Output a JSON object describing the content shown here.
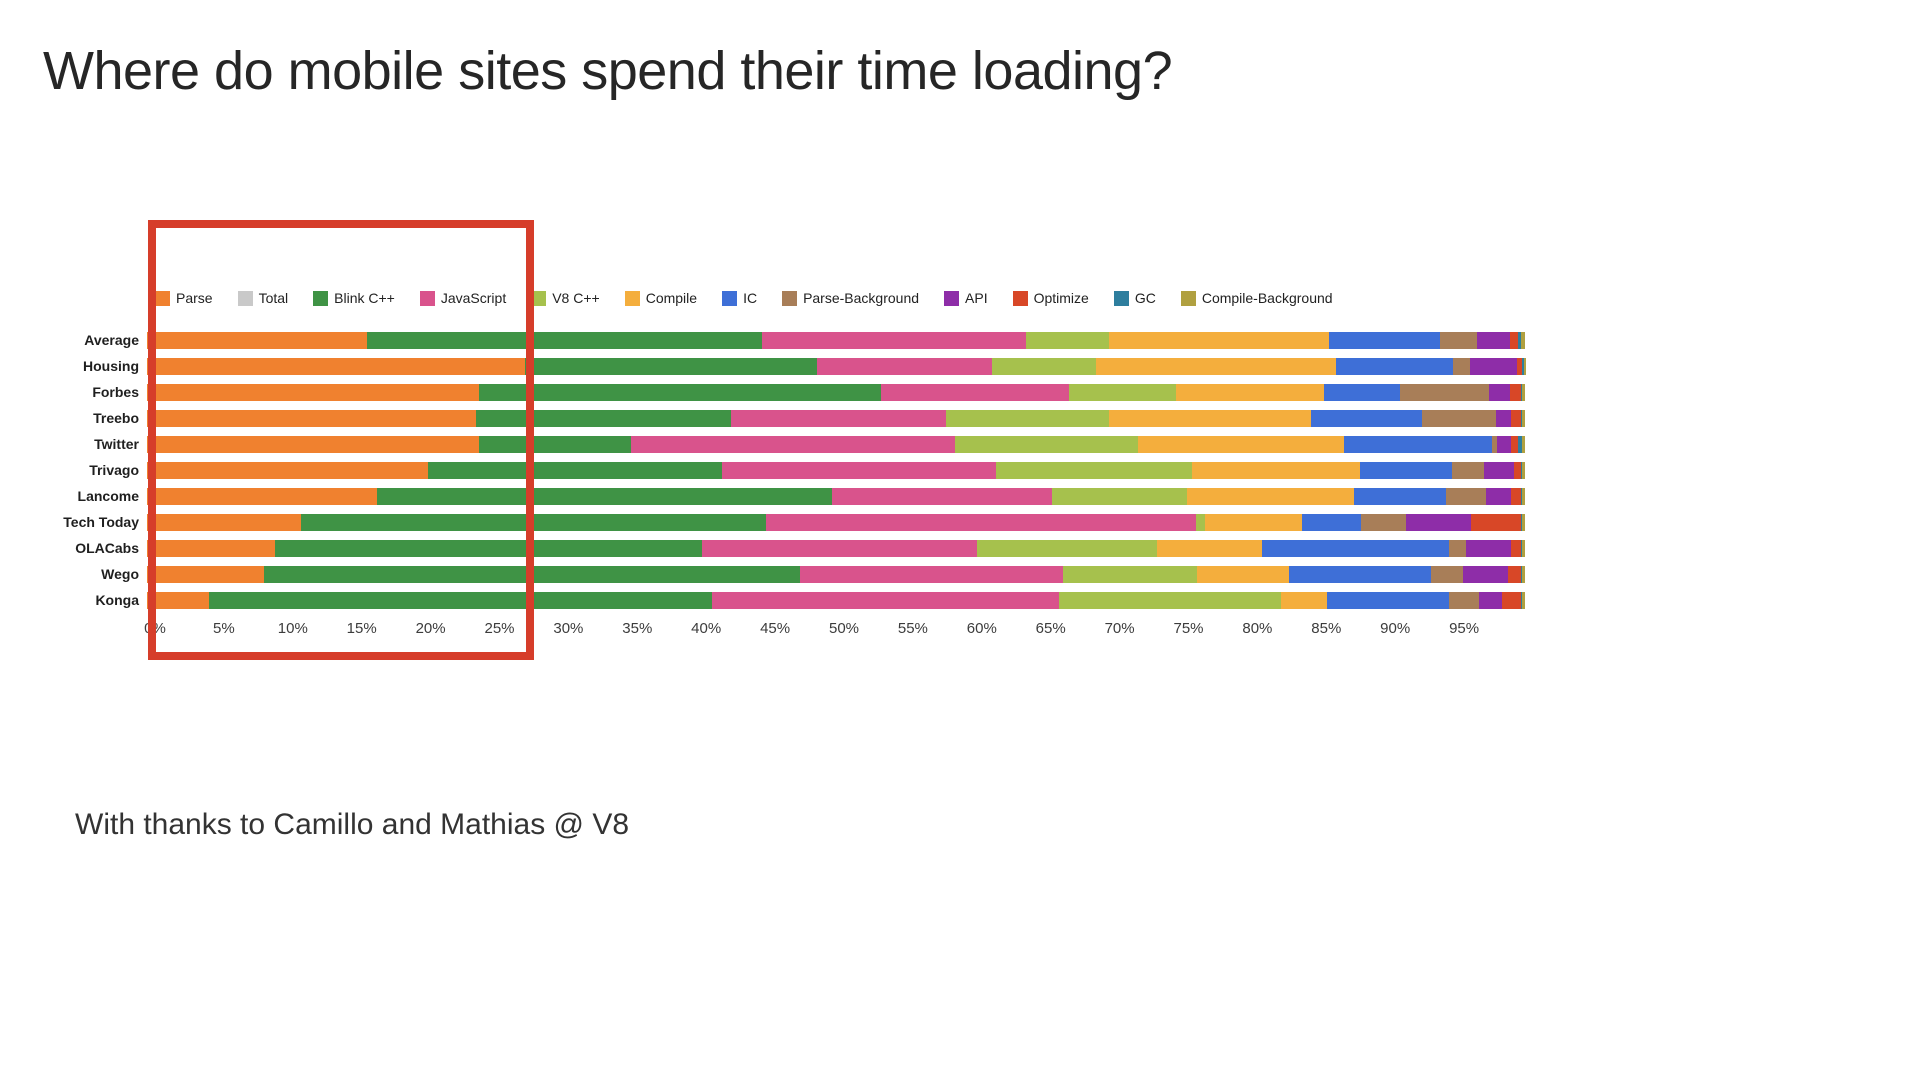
{
  "slide": {
    "title": "Where do mobile sites spend their time loading?",
    "credit": "With thanks to Camillo and Mathias @ V8"
  },
  "chart_data": {
    "type": "bar",
    "orientation": "horizontal",
    "stacked": true,
    "title": "Where do mobile sites spend their time loading?",
    "xlabel": "",
    "ylabel": "",
    "xlim": [
      0,
      100
    ],
    "legend_position": "top",
    "grid": false,
    "categories": [
      "Average",
      "Housing",
      "Forbes",
      "Treebo",
      "Twitter",
      "Trivago",
      "Lancome",
      "Tech Today",
      "OLACabs",
      "Wego",
      "Konga"
    ],
    "x_ticks": [
      "0%",
      "5%",
      "10%",
      "15%",
      "20%",
      "25%",
      "30%",
      "35%",
      "40%",
      "45%",
      "50%",
      "55%",
      "60%",
      "65%",
      "70%",
      "75%",
      "80%",
      "85%",
      "90%",
      "95%"
    ],
    "legend": [
      {
        "label": "Parse",
        "color": "#F0812F"
      },
      {
        "label": "Total",
        "color": "#C9C9C9"
      },
      {
        "label": "Blink C++",
        "color": "#3F9345"
      },
      {
        "label": "JavaScript",
        "color": "#D9538C"
      },
      {
        "label": "V8 C++",
        "color": "#A6C14D"
      },
      {
        "label": "Compile",
        "color": "#F4AE3D"
      },
      {
        "label": "IC",
        "color": "#3E6FD7"
      },
      {
        "label": "Parse-Background",
        "color": "#A87E58"
      },
      {
        "label": "API",
        "color": "#8E2DA8"
      },
      {
        "label": "Optimize",
        "color": "#D84727"
      },
      {
        "label": "GC",
        "color": "#2E7E9E"
      },
      {
        "label": "Compile-Background",
        "color": "#B0A040"
      }
    ],
    "series": [
      {
        "name": "Parse",
        "color": "#F0812F",
        "values": [
          16.0,
          27.4,
          24.1,
          23.9,
          24.1,
          20.4,
          16.7,
          11.2,
          9.3,
          8.5,
          4.5
        ]
      },
      {
        "name": "Blink C++",
        "color": "#3F9345",
        "values": [
          28.6,
          21.2,
          29.2,
          18.5,
          11.0,
          21.3,
          33.0,
          33.7,
          31.0,
          38.9,
          36.5
        ]
      },
      {
        "name": "JavaScript",
        "color": "#D9538C",
        "values": [
          19.2,
          12.7,
          13.6,
          15.6,
          23.5,
          19.9,
          16.0,
          31.2,
          19.9,
          19.1,
          25.2
        ]
      },
      {
        "name": "V8 C++",
        "color": "#A6C14D",
        "values": [
          6.0,
          7.6,
          7.8,
          11.8,
          13.3,
          14.2,
          9.8,
          0.7,
          13.1,
          9.7,
          16.1
        ]
      },
      {
        "name": "Compile",
        "color": "#F4AE3D",
        "values": [
          16.0,
          17.4,
          10.7,
          14.7,
          15.0,
          12.2,
          12.1,
          7.0,
          7.6,
          6.7,
          3.3
        ]
      },
      {
        "name": "IC",
        "color": "#3E6FD7",
        "values": [
          8.0,
          8.5,
          5.5,
          8.0,
          10.7,
          6.7,
          6.7,
          4.3,
          13.6,
          10.3,
          8.9
        ]
      },
      {
        "name": "Parse-Background",
        "color": "#A87E58",
        "values": [
          2.7,
          1.2,
          6.5,
          5.4,
          0.4,
          2.3,
          2.9,
          3.3,
          1.2,
          2.3,
          2.2
        ]
      },
      {
        "name": "API",
        "color": "#8E2DA8",
        "values": [
          2.4,
          3.4,
          1.5,
          1.1,
          1.0,
          2.2,
          1.8,
          4.7,
          3.3,
          3.3,
          1.6
        ]
      },
      {
        "name": "Optimize",
        "color": "#D84727",
        "values": [
          0.6,
          0.4,
          0.8,
          0.7,
          0.5,
          0.5,
          0.7,
          3.6,
          0.7,
          0.9,
          1.4
        ]
      },
      {
        "name": "GC",
        "color": "#2E7E9E",
        "values": [
          0.2,
          0.1,
          0.1,
          0.1,
          0.3,
          0.1,
          0.1,
          0.1,
          0.1,
          0.1,
          0.1
        ]
      },
      {
        "name": "Compile-Background",
        "color": "#B0A040",
        "values": [
          0.3,
          0.2,
          0.2,
          0.2,
          0.2,
          0.2,
          0.2,
          0.2,
          0.2,
          0.2,
          0.2
        ]
      }
    ],
    "annotation": {
      "type": "highlight-box",
      "color": "#D63D2A",
      "x_range_pct": [
        0,
        27.5
      ],
      "note": "red rectangle drawn over the 0%-27% region of the chart"
    }
  }
}
